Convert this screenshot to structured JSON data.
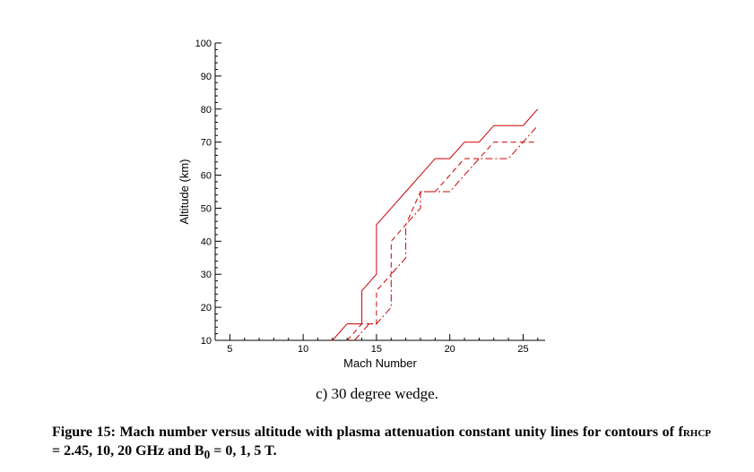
{
  "chart_data": {
    "type": "line",
    "title": "",
    "xlabel": "Mach Number",
    "ylabel": "Altitude (km)",
    "xlim": [
      4,
      26.5
    ],
    "ylim": [
      10,
      100
    ],
    "xticks": [
      5,
      10,
      15,
      20,
      25
    ],
    "xtick_labels": [
      "5",
      "10",
      "15",
      "20",
      "25"
    ],
    "yticks": [
      10,
      20,
      30,
      40,
      50,
      60,
      70,
      80,
      90,
      100
    ],
    "ytick_labels": [
      "10",
      "20",
      "30",
      "40",
      "50",
      "60",
      "70",
      "80",
      "90",
      "100"
    ],
    "grid": false,
    "legend": "none",
    "line_color": "#cc0000",
    "series": [
      {
        "style": "solid",
        "x": [
          12,
          13,
          14,
          14,
          15,
          15,
          16,
          17,
          18,
          19,
          20,
          21,
          22,
          23,
          24,
          25,
          26
        ],
        "y": [
          10,
          15,
          15,
          25,
          30,
          45,
          50,
          55,
          60,
          65,
          65,
          70,
          70,
          75,
          75,
          75,
          80
        ]
      },
      {
        "style": "dashed",
        "x": [
          13,
          14,
          15,
          15,
          16,
          16,
          17,
          18,
          19,
          20,
          21,
          22,
          23,
          24,
          25,
          26
        ],
        "y": [
          10,
          15,
          15,
          25,
          30,
          40,
          45,
          55,
          55,
          60,
          65,
          65,
          70,
          70,
          70,
          70
        ]
      },
      {
        "style": "dashdot",
        "x": [
          13.5,
          14.5,
          15,
          16,
          16,
          17,
          17,
          18,
          18,
          19,
          20,
          21,
          22,
          23,
          24,
          25,
          26
        ],
        "y": [
          10,
          15,
          15,
          20,
          30,
          35,
          45,
          50,
          55,
          55,
          55,
          60,
          65,
          65,
          65,
          70,
          75
        ]
      }
    ]
  },
  "caption": "c) 30 degree wedge.",
  "figure_caption": {
    "text_before": "Figure 15: Mach number versus altitude with plasma attenuation constant unity lines for contours of f",
    "f_subscript": "RHCP",
    "text_middle": " = 2.45, 10, 20 GHz and B",
    "b_subscript": "0",
    "text_after": " = 0, 1, 5 T."
  }
}
